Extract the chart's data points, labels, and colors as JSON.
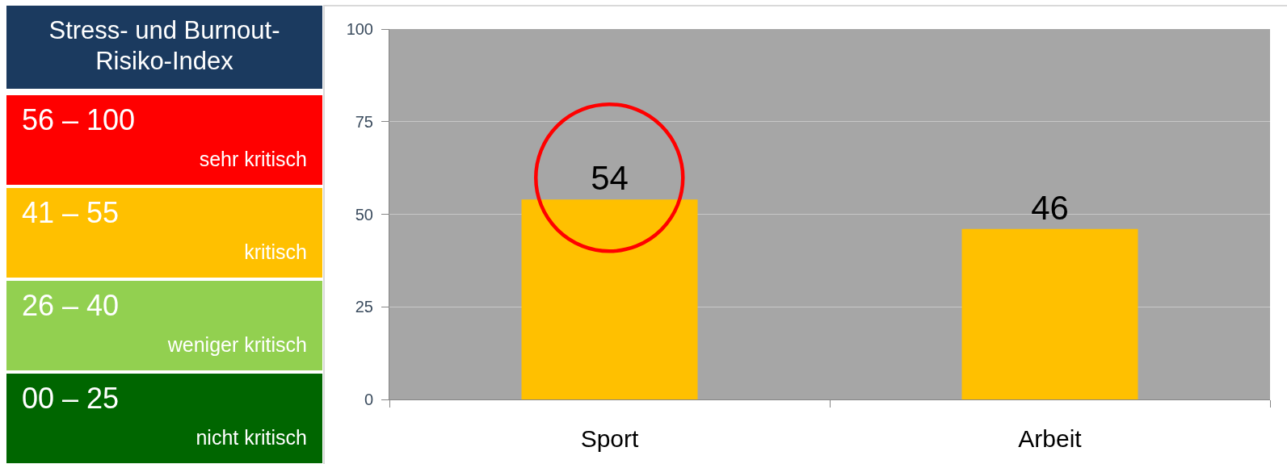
{
  "chart_data": [
    {
      "type": "other",
      "title": "Stress- und Burnout-Risiko-Index",
      "categories": [
        "56 – 100",
        "41 – 55",
        "26 – 40",
        "00 – 25"
      ],
      "annotations": [
        "sehr kritisch",
        "kritisch",
        "weniger kritisch",
        "nicht kritisch"
      ],
      "colors": [
        "#ff0000",
        "#ffc000",
        "#92d050",
        "#006600"
      ]
    },
    {
      "type": "bar",
      "categories": [
        "Sport",
        "Arbeit"
      ],
      "values": [
        54,
        46
      ],
      "color": "#ffc000",
      "ylim": [
        0,
        100
      ],
      "yticks": [
        0,
        25,
        50,
        75,
        100
      ],
      "grid": "y",
      "data_labels": true
    }
  ]
}
